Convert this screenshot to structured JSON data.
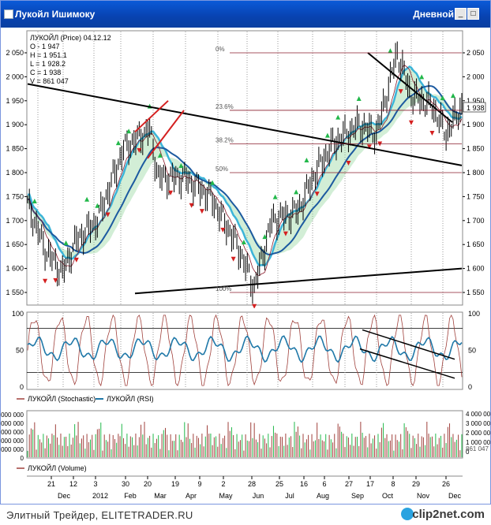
{
  "window": {
    "title": "Лукойл Ишимоку",
    "period": "Дневной",
    "minimize_glyph": "_",
    "maximize_glyph": "□"
  },
  "price_panel": {
    "header_lines": [
      "ЛУКОЙЛ (Price) 04.12.12",
      "O - 1 947",
      "H = 1 951.1",
      "L = 1 928.2",
      "C = 1 938",
      "V = 861 047"
    ],
    "y_ticks": [
      "2 050",
      "2 000",
      "1 950",
      "1 900",
      "1 850",
      "1 800",
      "1 750",
      "1 700",
      "1 650",
      "1 600",
      "1 550"
    ],
    "y_tick_values": [
      2050,
      2000,
      1950,
      1900,
      1850,
      1800,
      1750,
      1700,
      1650,
      1600,
      1550
    ],
    "last_price_label": "1 938",
    "fib_levels": [
      {
        "label": "0%",
        "value": 2050
      },
      {
        "label": "23.6%",
        "value": 1930
      },
      {
        "label": "38.2%",
        "value": 1860
      },
      {
        "label": "50%",
        "value": 1800
      },
      {
        "label": "100%",
        "value": 1550
      }
    ]
  },
  "oscillator_panel": {
    "y_ticks": [
      "100",
      "50",
      "0"
    ],
    "legend": [
      {
        "name": "ЛУКОЙЛ (Stochastic)",
        "color": "#a0413c"
      },
      {
        "name": "ЛУКОЙЛ (RSI)",
        "color": "#1f78a8"
      }
    ]
  },
  "volume_panel": {
    "y_ticks_left": [
      "000 000",
      "000 000",
      "000 000",
      "000 000",
      "000 000",
      "0"
    ],
    "y_ticks_right": [
      "4 000 00",
      "3 000 00",
      "2 000 00",
      "1 000 00",
      "0"
    ],
    "last_volume_label": "861 047",
    "legend": [
      {
        "name": "ЛУКОЙЛ (Volume)",
        "color": "#a0413c"
      }
    ]
  },
  "time_axis": {
    "day_labels": [
      "21",
      "12",
      "3",
      "30",
      "20",
      "19",
      "9",
      "2",
      "28",
      "25",
      "16",
      "6",
      "27",
      "17",
      "8",
      "29",
      "26"
    ],
    "month_labels": [
      "Dec",
      "2012",
      "Feb",
      "Mar",
      "Apr",
      "May",
      "Jun",
      "Jul",
      "Aug",
      "Sep",
      "Oct",
      "Nov",
      "Dec"
    ]
  },
  "footer": {
    "caption": "Элитный Трейдер, ELITETRADER.RU",
    "brand": "clip2net.com"
  },
  "colors": {
    "titlebar": "#0842b0",
    "price_bars": "#000000",
    "ichimoku_cloud": "#3cb4d8",
    "kijun": "#1c5aa0",
    "tenkan": "#8a1c2c",
    "up_arrow": "#22b84a",
    "down_arrow": "#d42020",
    "stochastic": "#a0413c",
    "rsi": "#1f78a8"
  }
}
